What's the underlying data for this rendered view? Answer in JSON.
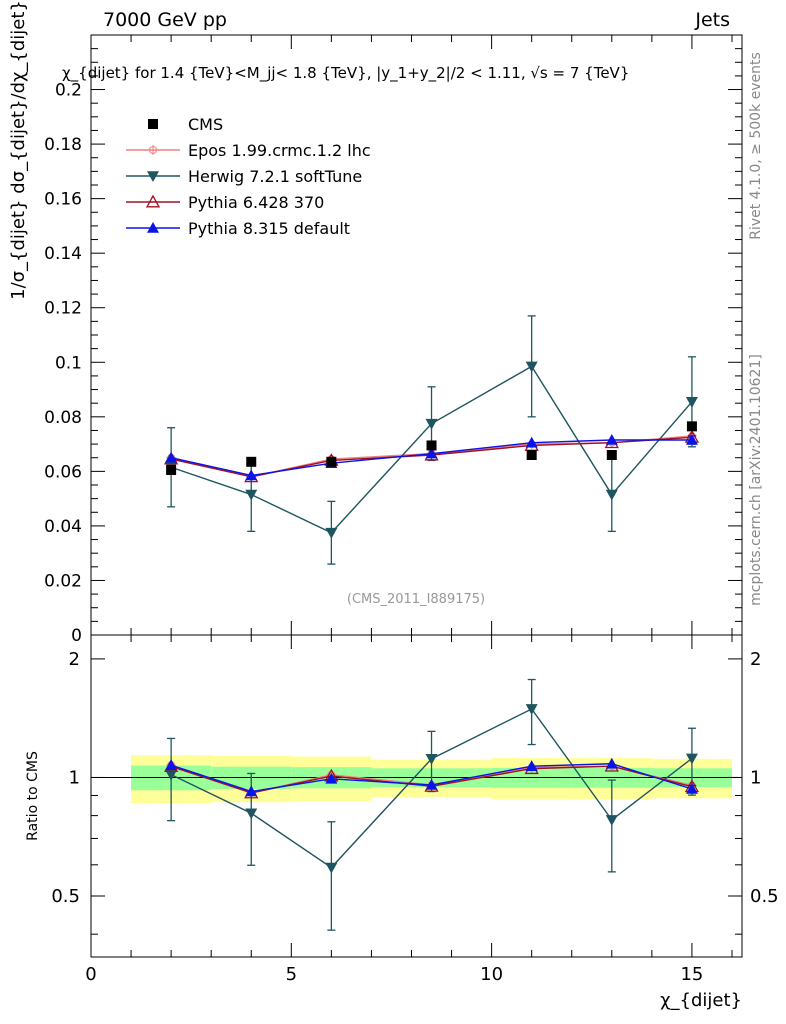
{
  "chart_data": {
    "type": "scatter",
    "header": {
      "left": "7000 GeV pp",
      "right": "Jets"
    },
    "title": "χ_{dijet} for 1.4 {TeV}<M_jj< 1.8 {TeV}, |y_1+y_2|/2 < 1.11, √s = 7 {TeV}",
    "ylabel": "1/σ_{dijet} dσ_{dijet}/dχ_{dijet}",
    "xlabel": "χ_{dijet}",
    "ratio_ylabel": "Ratio to CMS",
    "analysis_tag": "(CMS_2011_I889175)",
    "side_text_top": "Rivet 4.1.0, ≥ 500k events",
    "side_text_bottom": "mcplots.cern.ch [arXiv:2401.10621]",
    "xlim": [
      0,
      16.25
    ],
    "ylim": [
      0,
      0.22
    ],
    "ratio_ylim": [
      0.35,
      2.3
    ],
    "x_ticks": [
      0,
      5,
      10,
      15
    ],
    "y_ticks": [
      0,
      0.02,
      0.04,
      0.06,
      0.08,
      0.1,
      0.12,
      0.14,
      0.16,
      0.18,
      0.2
    ],
    "y_tick_labels": [
      "0",
      "0.02",
      "0.04",
      "0.06",
      "0.08",
      "0.1",
      "0.12",
      "0.14",
      "0.16",
      "0.18",
      "0.2"
    ],
    "ratio_ticks": [
      0.5,
      1,
      2
    ],
    "ratio_tick_labels": [
      "0.5",
      "1",
      "2"
    ],
    "bins": [
      {
        "lo": 1.0,
        "hi": 3.0
      },
      {
        "lo": 3.0,
        "hi": 5.0
      },
      {
        "lo": 5.0,
        "hi": 7.0
      },
      {
        "lo": 7.0,
        "hi": 10.0
      },
      {
        "lo": 10.0,
        "hi": 12.0
      },
      {
        "lo": 12.0,
        "hi": 14.0
      },
      {
        "lo": 14.0,
        "hi": 16.0
      }
    ],
    "x": [
      2,
      4,
      6,
      8.5,
      11,
      13,
      15
    ],
    "data": {
      "name": "CMS",
      "values": [
        0.0605,
        0.0635,
        0.0635,
        0.0695,
        0.066,
        0.066,
        0.0765
      ],
      "band_inner": [
        0.072,
        0.065,
        0.062,
        0.055,
        0.058,
        0.058,
        0.055
      ],
      "band_outer": [
        0.14,
        0.135,
        0.13,
        0.11,
        0.12,
        0.12,
        0.115
      ]
    },
    "series": [
      {
        "name": "Epos 1.99.crmc.1.2 lhc",
        "color": "#f08080",
        "marker": "cross-circle",
        "values": [
          0.065,
          0.058,
          0.0645,
          0.0665,
          0.07,
          0.0705,
          0.073
        ],
        "err": [
          0,
          0,
          0,
          0,
          0,
          0,
          0
        ]
      },
      {
        "name": "Herwig 7.2.1 softTune",
        "color": "#1f5560",
        "marker": "triangle-down",
        "values": [
          0.0615,
          0.0515,
          0.0375,
          0.0775,
          0.0985,
          0.0515,
          0.0855
        ],
        "err": [
          0.0145,
          0.0135,
          0.0115,
          0.0135,
          0.0185,
          0.0135,
          0.0165
        ]
      },
      {
        "name": "Pythia 6.428 370",
        "color": "#a01025",
        "marker": "triangle-open",
        "values": [
          0.0645,
          0.058,
          0.064,
          0.066,
          0.0695,
          0.0705,
          0.0725
        ],
        "err": [
          0,
          0,
          0,
          0,
          0,
          0,
          0
        ]
      },
      {
        "name": "Pythia 8.315 default",
        "color": "#0a14e6",
        "marker": "triangle-up",
        "values": [
          0.065,
          0.0585,
          0.063,
          0.0665,
          0.0705,
          0.0715,
          0.0715
        ],
        "err": [
          0,
          0,
          0,
          0,
          0,
          0,
          0.0015
        ]
      }
    ]
  }
}
